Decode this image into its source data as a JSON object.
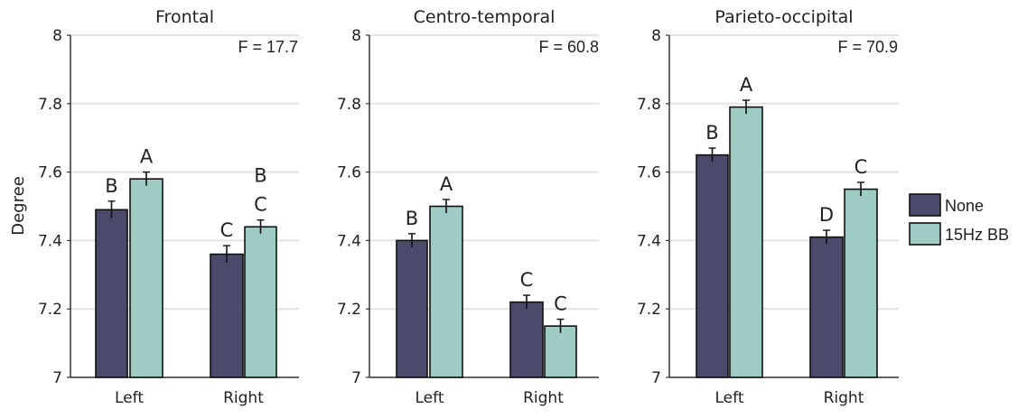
{
  "ylabel": "Degree",
  "legend": [
    {
      "name": "None",
      "color": "#4a4a6a"
    },
    {
      "name": "15Hz BB",
      "color": "#9ecbc4"
    }
  ],
  "chart_data": [
    {
      "type": "bar",
      "title": "Frontal",
      "annotation": "F = 17.7",
      "categories": [
        "Left",
        "Right"
      ],
      "ylim": [
        7,
        8
      ],
      "yticks": [
        "7",
        "7.2",
        "7.4",
        "7.6",
        "7.8",
        "8"
      ],
      "grid": true,
      "series": [
        {
          "name": "None",
          "values": [
            7.49,
            7.36
          ],
          "errors": [
            0.025,
            0.025
          ],
          "labels": [
            "B",
            "C"
          ]
        },
        {
          "name": "15Hz BB",
          "values": [
            7.58,
            7.44
          ],
          "errors": [
            0.02,
            0.02
          ],
          "labels": [
            "A",
            "B\nC"
          ]
        }
      ]
    },
    {
      "type": "bar",
      "title": "Centro-temporal",
      "annotation": "F = 60.8",
      "categories": [
        "Left",
        "Right"
      ],
      "ylim": [
        7,
        8
      ],
      "yticks": [
        "7",
        "7.2",
        "7.4",
        "7.6",
        "7.8",
        "8"
      ],
      "grid": true,
      "series": [
        {
          "name": "None",
          "values": [
            7.4,
            7.22
          ],
          "errors": [
            0.02,
            0.02
          ],
          "labels": [
            "B",
            "C"
          ]
        },
        {
          "name": "15Hz BB",
          "values": [
            7.5,
            7.15
          ],
          "errors": [
            0.02,
            0.02
          ],
          "labels": [
            "A",
            "C"
          ]
        }
      ]
    },
    {
      "type": "bar",
      "title": "Parieto-occipital",
      "annotation": "F = 70.9",
      "categories": [
        "Left",
        "Right"
      ],
      "ylim": [
        7,
        8
      ],
      "yticks": [
        "7",
        "7.2",
        "7.4",
        "7.6",
        "7.8",
        "8"
      ],
      "grid": true,
      "series": [
        {
          "name": "None",
          "values": [
            7.65,
            7.41
          ],
          "errors": [
            0.02,
            0.02
          ],
          "labels": [
            "B",
            "D"
          ]
        },
        {
          "name": "15Hz BB",
          "values": [
            7.79,
            7.55
          ],
          "errors": [
            0.02,
            0.02
          ],
          "labels": [
            "A",
            "C"
          ]
        }
      ]
    }
  ]
}
